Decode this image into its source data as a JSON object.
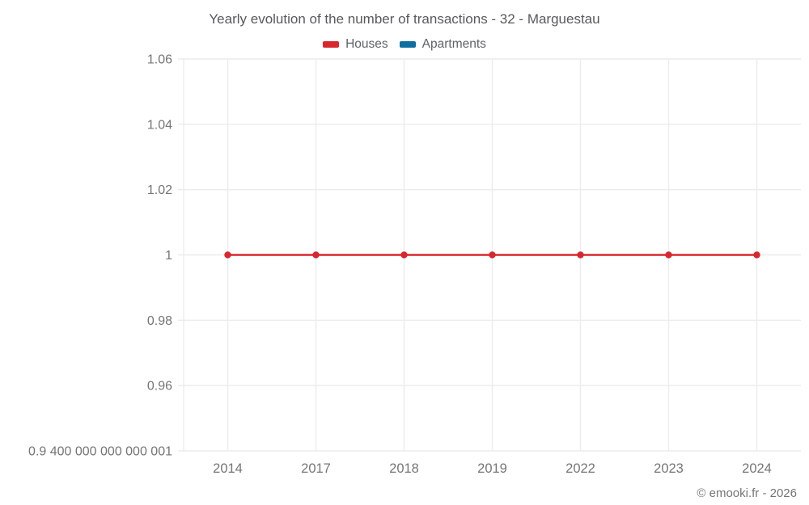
{
  "title": "Yearly evolution of the number of transactions - 32 - Marguestau",
  "footer": "© emooki.fr - 2026",
  "legend": [
    {
      "label": "Houses",
      "color": "#d7282f"
    },
    {
      "label": "Apartments",
      "color": "#0e6e9e"
    }
  ],
  "colors": {
    "houses": "#d7282f",
    "apartments": "#0e6e9e",
    "gridline": "#ececec",
    "axis_text": "#757575",
    "title_text": "#58595b"
  },
  "chart_data": {
    "type": "line",
    "title": "Yearly evolution of the number of transactions - 32 - Marguestau",
    "xlabel": "",
    "ylabel": "",
    "categories": [
      "2014",
      "2017",
      "2018",
      "2019",
      "2022",
      "2023",
      "2024"
    ],
    "series": [
      {
        "name": "Houses",
        "color": "#d7282f",
        "values": [
          1,
          1,
          1,
          1,
          1,
          1,
          1
        ]
      },
      {
        "name": "Apartments",
        "color": "#0e6e9e",
        "values": []
      }
    ],
    "ylim": [
      0.94,
      1.06
    ],
    "y_ticks": [
      {
        "value": 1.06,
        "label": "1.06"
      },
      {
        "value": 1.04,
        "label": "1.04"
      },
      {
        "value": 1.02,
        "label": "1.02"
      },
      {
        "value": 1.0,
        "label": "1"
      },
      {
        "value": 0.98,
        "label": "0.98"
      },
      {
        "value": 0.96,
        "label": "0.96"
      },
      {
        "value": 0.94,
        "label": "0.9 400 000 000 000 001"
      }
    ],
    "grid": true,
    "legend_position": "top"
  }
}
